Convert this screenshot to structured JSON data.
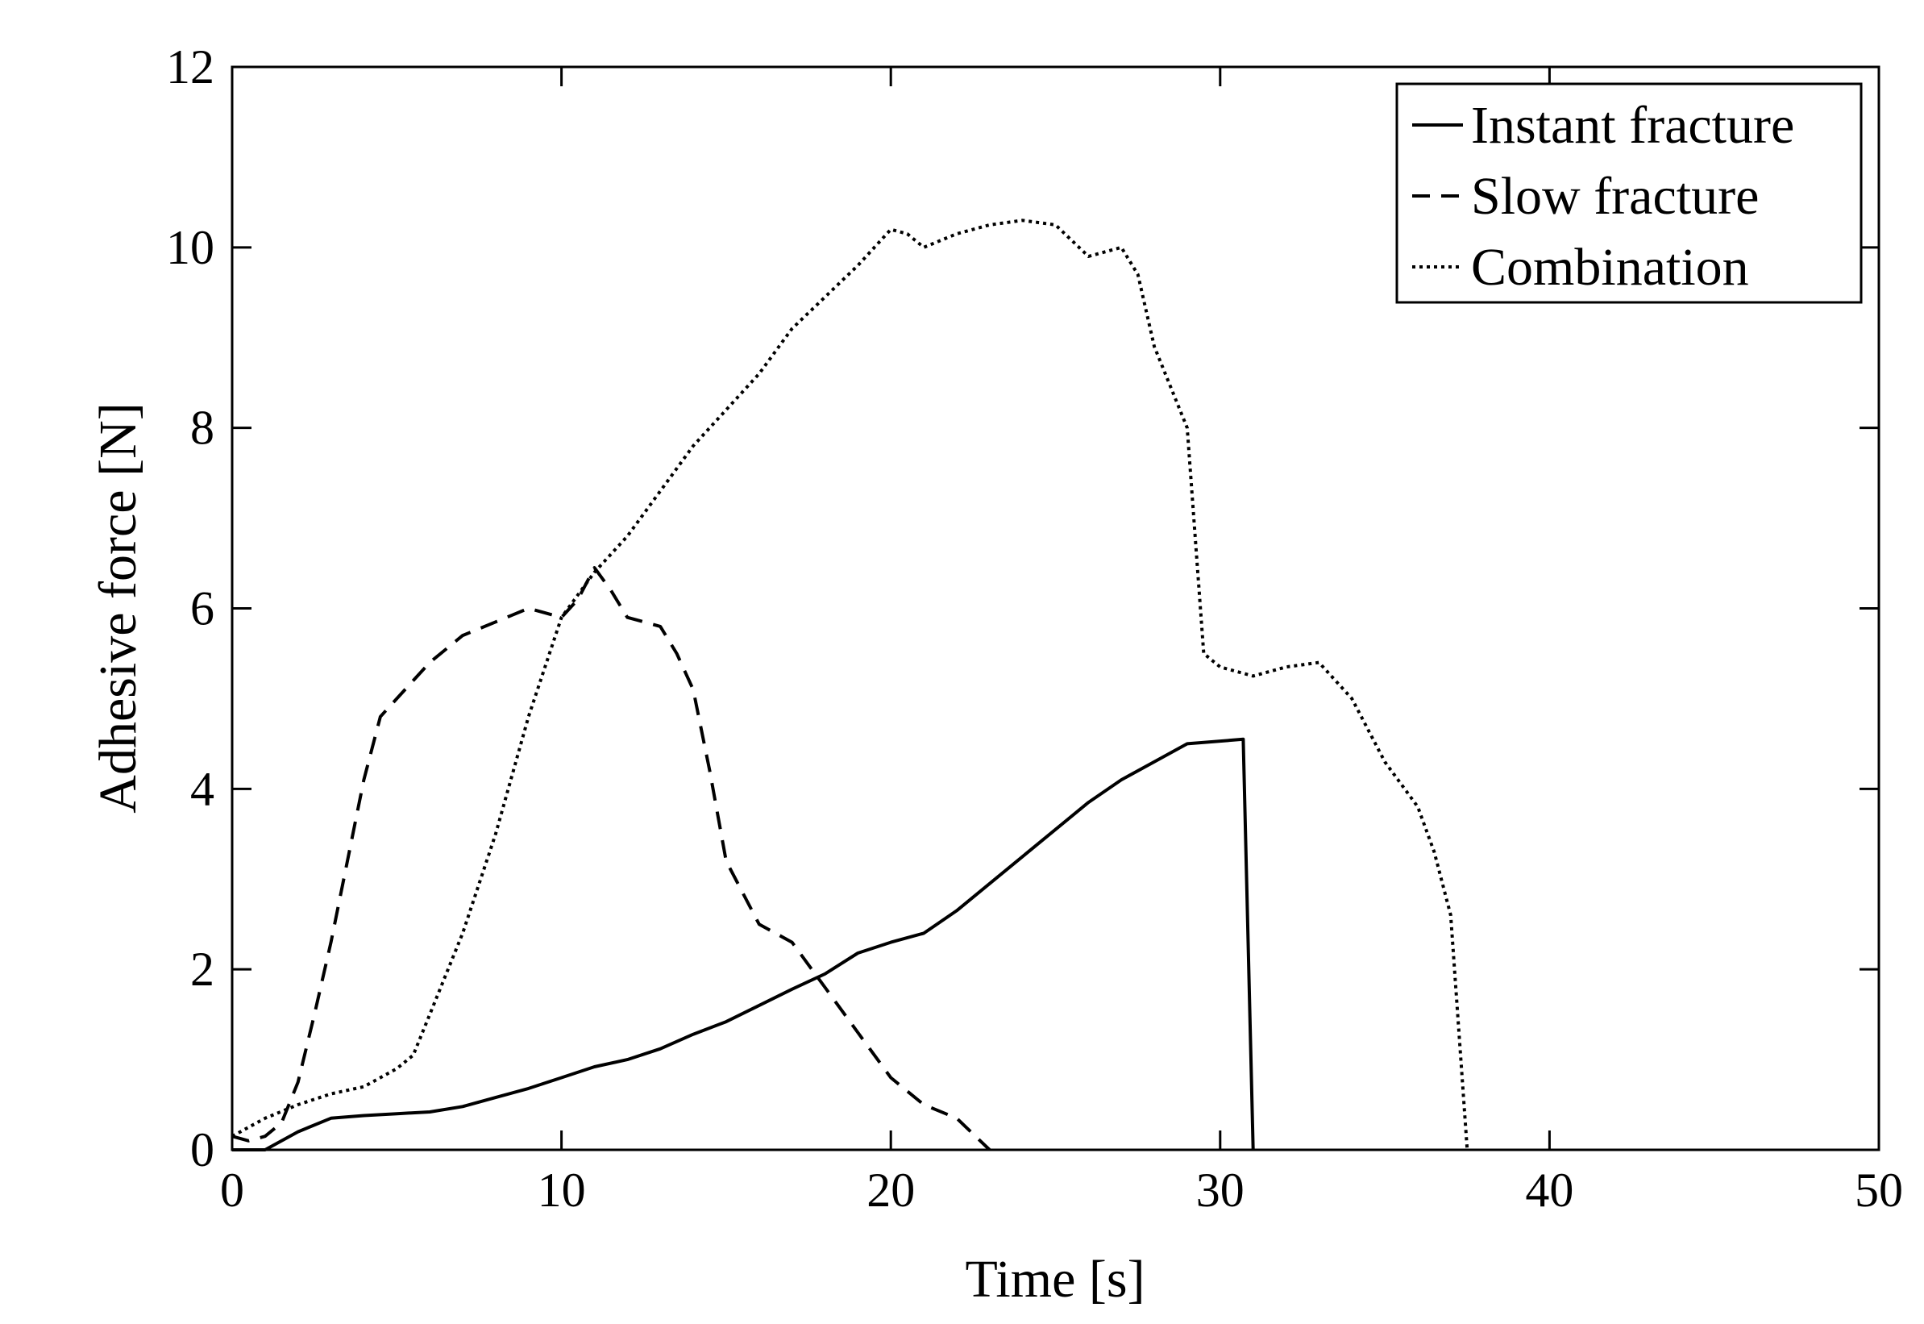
{
  "chart_data": {
    "type": "line",
    "title": "",
    "xlabel": "Time [s]",
    "ylabel": "Adhesive force [N]",
    "xlim": [
      0,
      50
    ],
    "ylim": [
      0,
      12
    ],
    "xticks": [
      0,
      10,
      20,
      30,
      40,
      50
    ],
    "yticks": [
      0,
      2,
      4,
      6,
      8,
      10,
      12
    ],
    "xtick_labels": [
      "0",
      "10",
      "20",
      "30",
      "40",
      "50"
    ],
    "ytick_labels": [
      "0",
      "2",
      "4",
      "6",
      "8",
      "10",
      "12"
    ],
    "grid": false,
    "legend_position": "top-right",
    "series": [
      {
        "name": "Instant fracture",
        "style": "solid",
        "color": "#000000",
        "x": [
          0,
          1,
          2,
          3,
          4,
          5,
          6,
          7,
          8,
          9,
          10,
          11,
          12,
          13,
          14,
          15,
          16,
          17,
          18,
          19,
          20,
          21,
          22,
          23,
          24,
          25,
          26,
          27,
          28,
          29,
          30.7,
          31
        ],
        "y": [
          0,
          0,
          0.2,
          0.35,
          0.38,
          0.4,
          0.42,
          0.48,
          0.58,
          0.68,
          0.8,
          0.92,
          1.0,
          1.12,
          1.28,
          1.42,
          1.6,
          1.78,
          1.95,
          2.18,
          2.3,
          2.4,
          2.65,
          2.95,
          3.25,
          3.55,
          3.85,
          4.1,
          4.3,
          4.5,
          4.55,
          0
        ]
      },
      {
        "name": "Slow fracture",
        "style": "dashed",
        "color": "#000000",
        "x": [
          0,
          0.5,
          1,
          1.5,
          2,
          2.5,
          3,
          3.5,
          4,
          4.5,
          5,
          5.5,
          6,
          7,
          8,
          9,
          9.5,
          10,
          10.5,
          11,
          11.5,
          12,
          12.5,
          13,
          13.5,
          14,
          14.5,
          15,
          16,
          17,
          18,
          19,
          20,
          21,
          22,
          23
        ],
        "y": [
          0.15,
          0.1,
          0.15,
          0.3,
          0.75,
          1.5,
          2.3,
          3.2,
          4.1,
          4.8,
          5.0,
          5.2,
          5.4,
          5.7,
          5.85,
          6.0,
          5.95,
          5.9,
          6.1,
          6.45,
          6.2,
          5.9,
          5.85,
          5.8,
          5.5,
          5.1,
          4.2,
          3.2,
          2.5,
          2.3,
          1.8,
          1.3,
          0.8,
          0.5,
          0.35,
          0
        ]
      },
      {
        "name": "Combination",
        "style": "dotted",
        "color": "#000000",
        "x": [
          0,
          1,
          2,
          3,
          4,
          5,
          5.5,
          6,
          7,
          8,
          9,
          10,
          11,
          12,
          13,
          14,
          15,
          16,
          17,
          18,
          19,
          20,
          20.5,
          21,
          22,
          23,
          24,
          25,
          26,
          27,
          27.5,
          28,
          29,
          29.5,
          30,
          31,
          32,
          33,
          34,
          35,
          36,
          36.5,
          37,
          37.5
        ],
        "y": [
          0.15,
          0.35,
          0.5,
          0.62,
          0.7,
          0.9,
          1.05,
          1.5,
          2.4,
          3.5,
          4.8,
          5.9,
          6.4,
          6.8,
          7.3,
          7.8,
          8.2,
          8.6,
          9.1,
          9.45,
          9.8,
          10.2,
          10.15,
          10.0,
          10.15,
          10.25,
          10.3,
          10.25,
          9.9,
          10.0,
          9.7,
          8.9,
          8.0,
          5.5,
          5.35,
          5.25,
          5.35,
          5.4,
          5.0,
          4.3,
          3.8,
          3.3,
          2.6,
          0
        ]
      }
    ]
  }
}
